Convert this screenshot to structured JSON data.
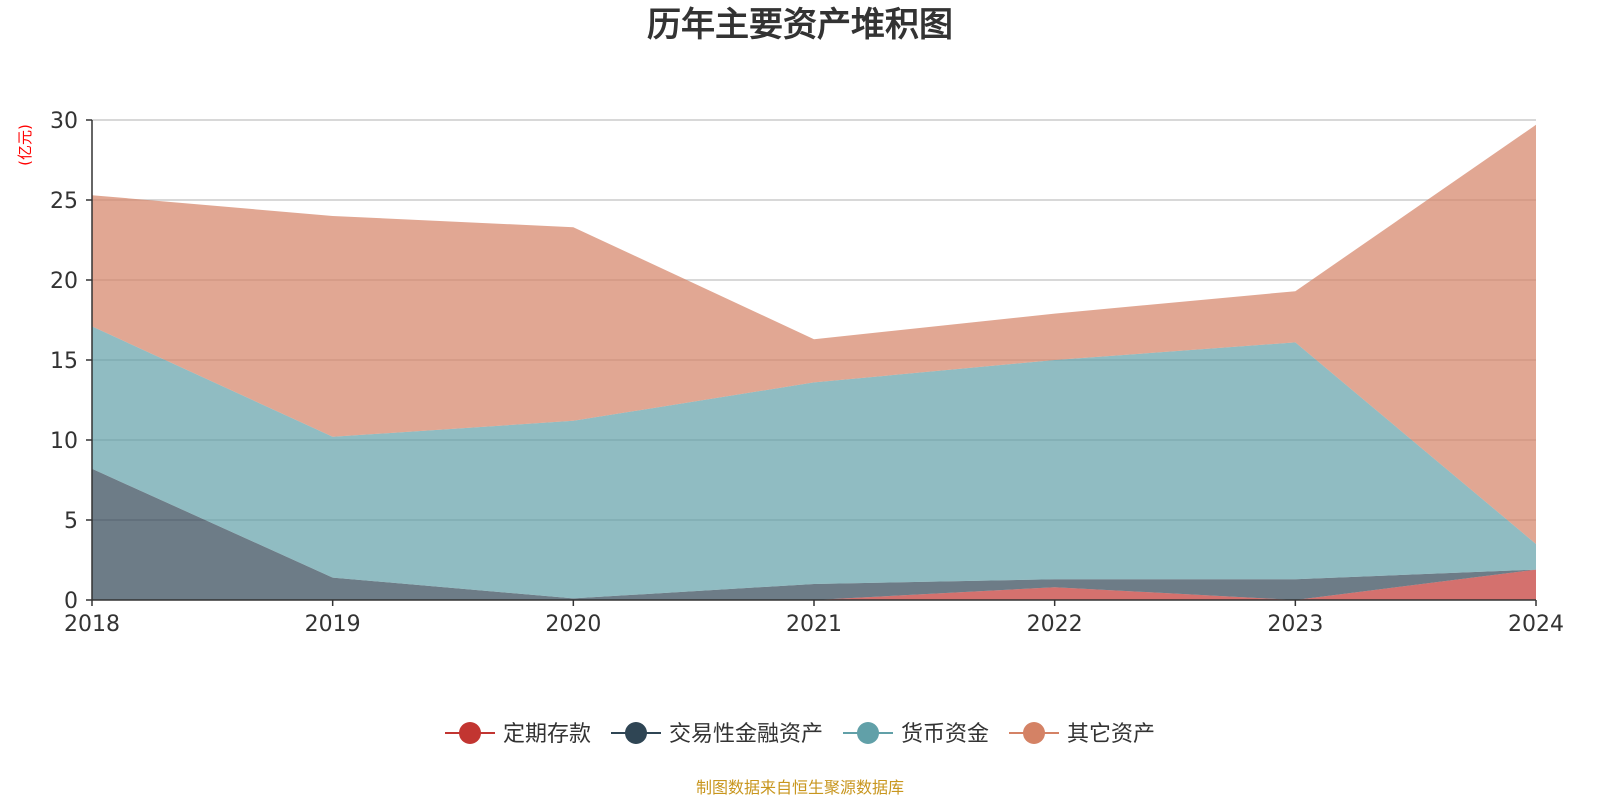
{
  "chart_data": {
    "type": "area",
    "title": "历年主要资产堆积图",
    "ylabel": "(亿元)",
    "xlabel": "",
    "categories": [
      "2018",
      "2019",
      "2020",
      "2021",
      "2022",
      "2023",
      "2024"
    ],
    "ylim": [
      0,
      30
    ],
    "yticks": [
      0,
      5,
      10,
      15,
      20,
      25,
      30
    ],
    "stacked": true,
    "grid": true,
    "legend_position": "bottom",
    "series": [
      {
        "name": "定期存款",
        "color": "#c23531",
        "values": [
          0,
          0,
          0,
          0,
          0.8,
          0,
          1.9
        ]
      },
      {
        "name": "交易性金融资产",
        "color": "#2f4554",
        "values": [
          8.2,
          1.4,
          0.1,
          1.0,
          0.5,
          1.3,
          0
        ]
      },
      {
        "name": "货币资金",
        "color": "#61a0a8",
        "values": [
          8.9,
          8.8,
          11.1,
          12.6,
          13.7,
          14.8,
          1.6
        ]
      },
      {
        "name": "其它资产",
        "color": "#d48265",
        "values": [
          8.2,
          13.8,
          12.1,
          2.7,
          2.9,
          3.2,
          26.2
        ]
      }
    ]
  },
  "axis_label_color": "#ff0000",
  "source": {
    "text": "制图数据来自恒生聚源数据库",
    "color": "#c8961e"
  }
}
